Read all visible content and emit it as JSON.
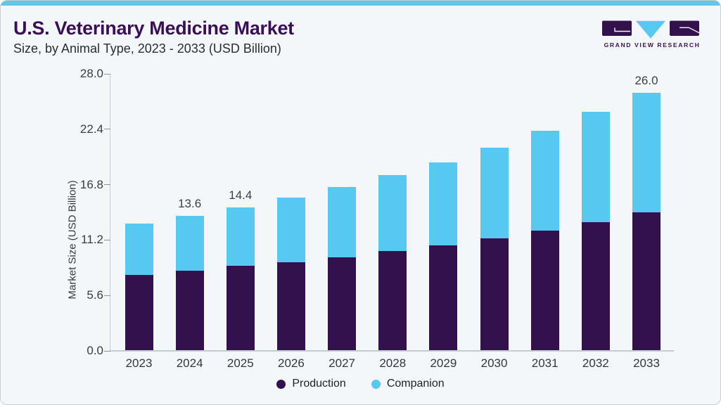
{
  "header": {
    "title": "U.S. Veterinary Medicine Market",
    "subtitle": "Size, by Animal Type, 2023 - 2033 (USD Billion)"
  },
  "logo": {
    "brand": "GRAND VIEW RESEARCH"
  },
  "chart_data": {
    "type": "bar",
    "stacked": true,
    "title": "U.S. Veterinary Medicine Market",
    "subtitle": "Size, by Animal Type, 2023 - 2033 (USD Billion)",
    "xlabel": "",
    "ylabel": "Market Size (USD Billion)",
    "ylim": [
      0,
      28
    ],
    "yticks": [
      0,
      5.6,
      11.2,
      16.8,
      22.4,
      28
    ],
    "ytick_labels": [
      "0.0",
      "5.6",
      "11.2",
      "16.8",
      "22.4",
      "28.0"
    ],
    "categories": [
      "2023",
      "2024",
      "2025",
      "2026",
      "2027",
      "2028",
      "2029",
      "2030",
      "2031",
      "2032",
      "2033"
    ],
    "series": [
      {
        "name": "Production",
        "color": "#33114d",
        "values": [
          7.6,
          8.0,
          8.5,
          8.9,
          9.4,
          10.0,
          10.6,
          11.3,
          12.1,
          12.9,
          13.9
        ]
      },
      {
        "name": "Companion",
        "color": "#56c8f2",
        "values": [
          5.2,
          5.6,
          5.9,
          6.5,
          7.1,
          7.7,
          8.4,
          9.2,
          10.1,
          11.2,
          12.1
        ]
      }
    ],
    "totals": [
      12.8,
      13.6,
      14.4,
      15.4,
      16.5,
      17.7,
      19.0,
      20.5,
      22.2,
      24.1,
      26.0
    ],
    "bar_labels": [
      {
        "category": "2024",
        "text": "13.6"
      },
      {
        "category": "2025",
        "text": "14.4"
      },
      {
        "category": "2033",
        "text": "26.0"
      }
    ],
    "legend_position": "bottom",
    "grid": false
  },
  "colors": {
    "card_background": "#f3f7fa",
    "top_accent": "#5fc6ef",
    "card_border": "#c9ced3",
    "title": "#3a0f55",
    "text": "#333333",
    "axis_line": "#c6cbd1",
    "production": "#33114d",
    "companion": "#56c8f2"
  }
}
